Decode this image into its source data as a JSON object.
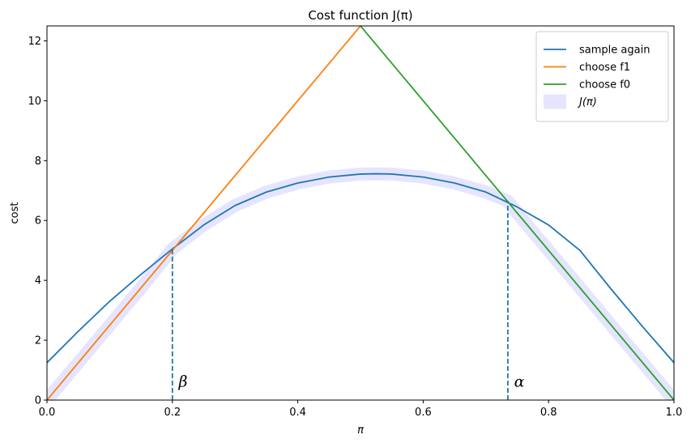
{
  "chart_data": {
    "type": "line",
    "title": "Cost function J(π)",
    "xlabel": "π",
    "ylabel": "cost",
    "xlim": [
      0,
      1
    ],
    "ylim": [
      0,
      12.5
    ],
    "x_ticks": [
      "0.0",
      "0.2",
      "0.4",
      "0.6",
      "0.8",
      "1.0"
    ],
    "y_ticks": [
      "0",
      "2",
      "4",
      "6",
      "8",
      "10",
      "12"
    ],
    "grid": false,
    "legend_position": "top-right",
    "series": [
      {
        "name": "sample again",
        "color": "#1f77b4",
        "x": [
          0,
          0.05,
          0.1,
          0.15,
          0.2,
          0.25,
          0.3,
          0.35,
          0.4,
          0.45,
          0.5,
          0.525,
          0.55,
          0.6,
          0.65,
          0.7,
          0.75,
          0.8,
          0.85,
          0.9,
          0.95,
          1.0
        ],
        "y": [
          1.25,
          2.3,
          3.3,
          4.2,
          5.05,
          5.85,
          6.5,
          6.95,
          7.25,
          7.45,
          7.55,
          7.56,
          7.55,
          7.45,
          7.25,
          6.95,
          6.45,
          5.85,
          5.0,
          3.7,
          2.45,
          1.25
        ]
      },
      {
        "name": "choose f1",
        "color": "#ff7f0e",
        "x": [
          0,
          0.5
        ],
        "y": [
          0,
          12.5
        ]
      },
      {
        "name": "choose f0",
        "color": "#2ca02c",
        "x": [
          0.5,
          1.0
        ],
        "y": [
          12.5,
          0
        ]
      },
      {
        "name": "J(π)",
        "color": "#e5e5ff",
        "x": [
          0,
          0.05,
          0.1,
          0.15,
          0.2,
          0.25,
          0.3,
          0.35,
          0.4,
          0.45,
          0.5,
          0.525,
          0.55,
          0.6,
          0.65,
          0.7,
          0.735,
          0.75,
          0.8,
          0.85,
          0.9,
          0.95,
          1.0
        ],
        "y": [
          0,
          1.25,
          2.5,
          3.75,
          5.05,
          5.85,
          6.5,
          6.95,
          7.25,
          7.45,
          7.55,
          7.56,
          7.55,
          7.45,
          7.25,
          6.95,
          6.65,
          6.25,
          5.0,
          3.75,
          2.5,
          1.25,
          0
        ]
      }
    ],
    "vlines": [
      {
        "x": 0.2,
        "y": 5.05,
        "color": "#1f77b4"
      },
      {
        "x": 0.735,
        "y": 6.65,
        "color": "#1f77b4"
      }
    ],
    "annotations": [
      {
        "text": "β",
        "x": 0.21,
        "y": 0.45
      },
      {
        "text": "α",
        "x": 0.745,
        "y": 0.45
      }
    ]
  }
}
